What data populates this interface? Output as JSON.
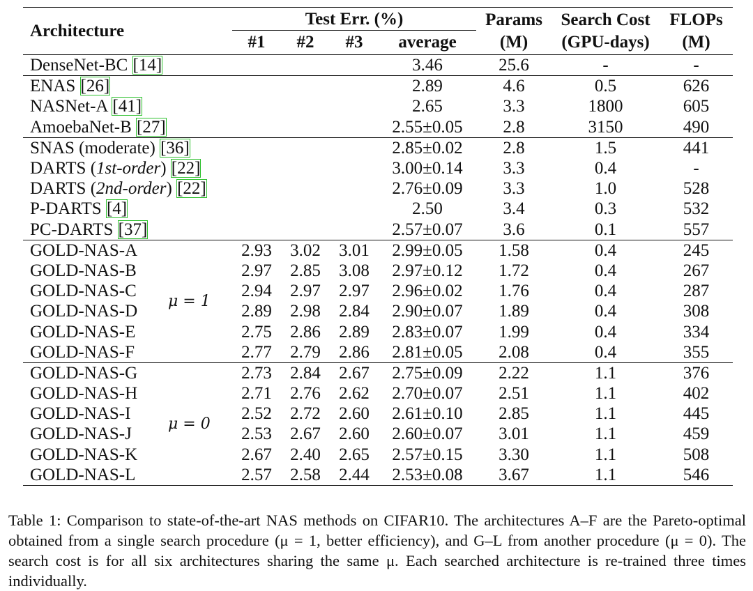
{
  "header": {
    "architecture": "Architecture",
    "test_err": "Test Err. (%)",
    "params": "Params",
    "params_unit": "(M)",
    "search_cost": "Search Cost",
    "search_cost_unit": "(GPU-days)",
    "flops": "FLOPs",
    "flops_unit": "(M)",
    "run1": "#1",
    "run2": "#2",
    "run3": "#3",
    "average": "average"
  },
  "groups": [
    {
      "rows": [
        {
          "name": "DenseNet-BC",
          "cite": "14",
          "avg": "3.46",
          "params": "25.6",
          "cost": "-",
          "flops": "-"
        }
      ]
    },
    {
      "rows": [
        {
          "name": "ENAS",
          "cite": "26",
          "avg": "2.89",
          "params": "4.6",
          "cost": "0.5",
          "flops": "626"
        },
        {
          "name": "NASNet-A",
          "cite": "41",
          "avg": "2.65",
          "params": "3.3",
          "cost": "1800",
          "flops": "605"
        },
        {
          "name": "AmoebaNet-B",
          "cite": "27",
          "avg": "2.55±0.05",
          "params": "2.8",
          "cost": "3150",
          "flops": "490"
        }
      ]
    },
    {
      "rows": [
        {
          "name": "SNAS (moderate)",
          "cite": "36",
          "avg": "2.85±0.02",
          "params": "2.8",
          "cost": "1.5",
          "flops": "441"
        },
        {
          "name": "DARTS (",
          "name_em": "1st-order",
          "name_after": ")",
          "cite": "22",
          "avg": "3.00±0.14",
          "params": "3.3",
          "cost": "0.4",
          "flops": "-"
        },
        {
          "name": "DARTS (",
          "name_em": "2nd-order",
          "name_after": ")",
          "cite": "22",
          "avg": "2.76±0.09",
          "params": "3.3",
          "cost": "1.0",
          "flops": "528"
        },
        {
          "name": "P-DARTS",
          "cite": "4",
          "avg": "2.50",
          "params": "3.4",
          "cost": "0.3",
          "flops": "532"
        },
        {
          "name": "PC-DARTS",
          "cite": "37",
          "avg": "2.57±0.07",
          "params": "3.6",
          "cost": "0.1",
          "flops": "557"
        }
      ]
    },
    {
      "mu": "μ = 1",
      "rows": [
        {
          "name": "GOLD-NAS-A",
          "r1": "2.93",
          "r2": "3.02",
          "r3": "3.01",
          "avg": "2.99±0.05",
          "params": "1.58",
          "cost": "0.4",
          "flops": "245"
        },
        {
          "name": "GOLD-NAS-B",
          "r1": "2.97",
          "r2": "2.85",
          "r3": "3.08",
          "avg": "2.97±0.12",
          "params": "1.72",
          "cost": "0.4",
          "flops": "267"
        },
        {
          "name": "GOLD-NAS-C",
          "r1": "2.94",
          "r2": "2.97",
          "r3": "2.97",
          "avg": "2.96±0.02",
          "params": "1.76",
          "cost": "0.4",
          "flops": "287"
        },
        {
          "name": "GOLD-NAS-D",
          "r1": "2.89",
          "r2": "2.98",
          "r3": "2.84",
          "avg": "2.90±0.07",
          "params": "1.89",
          "cost": "0.4",
          "flops": "308"
        },
        {
          "name": "GOLD-NAS-E",
          "r1": "2.75",
          "r2": "2.86",
          "r3": "2.89",
          "avg": "2.83±0.07",
          "params": "1.99",
          "cost": "0.4",
          "flops": "334"
        },
        {
          "name": "GOLD-NAS-F",
          "r1": "2.77",
          "r2": "2.79",
          "r3": "2.86",
          "avg": "2.81±0.05",
          "params": "2.08",
          "cost": "0.4",
          "flops": "355"
        }
      ]
    },
    {
      "mu": "μ = 0",
      "rows": [
        {
          "name": "GOLD-NAS-G",
          "r1": "2.73",
          "r2": "2.84",
          "r3": "2.67",
          "avg": "2.75±0.09",
          "params": "2.22",
          "cost": "1.1",
          "flops": "376"
        },
        {
          "name": "GOLD-NAS-H",
          "r1": "2.71",
          "r2": "2.76",
          "r3": "2.62",
          "avg": "2.70±0.07",
          "params": "2.51",
          "cost": "1.1",
          "flops": "402"
        },
        {
          "name": "GOLD-NAS-I",
          "r1": "2.52",
          "r2": "2.72",
          "r3": "2.60",
          "avg": "2.61±0.10",
          "params": "2.85",
          "cost": "1.1",
          "flops": "445"
        },
        {
          "name": "GOLD-NAS-J",
          "r1": "2.53",
          "r2": "2.67",
          "r3": "2.60",
          "avg": "2.60±0.07",
          "params": "3.01",
          "cost": "1.1",
          "flops": "459"
        },
        {
          "name": "GOLD-NAS-K",
          "r1": "2.67",
          "r2": "2.40",
          "r3": "2.65",
          "avg": "2.57±0.15",
          "params": "3.30",
          "cost": "1.1",
          "flops": "508"
        },
        {
          "name": "GOLD-NAS-L",
          "r1": "2.57",
          "r2": "2.58",
          "r3": "2.44",
          "avg": "2.53±0.08",
          "params": "3.67",
          "cost": "1.1",
          "flops": "546"
        }
      ]
    }
  ],
  "caption": "Table 1: Comparison to state-of-the-art NAS methods on CIFAR10. The architectures A–F are the Pareto-optimal obtained from a single search procedure (μ = 1, better efficiency), and G–L from another procedure (μ = 0). The search cost is for all six architectures sharing the same μ. Each searched architecture is re-trained three times individually."
}
